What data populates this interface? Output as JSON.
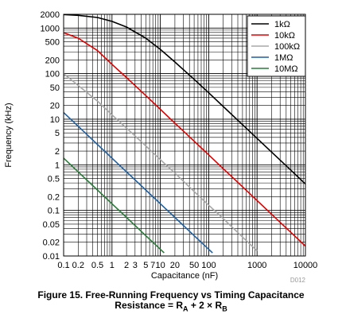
{
  "chart_data": {
    "type": "line",
    "x_scale": "log",
    "y_scale": "log",
    "xlim": [
      0.1,
      10000
    ],
    "ylim": [
      0.01,
      2000
    ],
    "xlabel": "Capacitance (nF)",
    "ylabel": "Frequency (kHz)",
    "x_ticks": [
      "0.1",
      "0.2",
      "0.5",
      "1",
      "2",
      "3",
      "5",
      "7",
      "10",
      "20",
      "50",
      "100",
      "1000",
      "10000"
    ],
    "x_tick_values": [
      0.1,
      0.2,
      0.5,
      1,
      2,
      3,
      5,
      7,
      10,
      20,
      50,
      100,
      1000,
      10000
    ],
    "y_ticks": [
      "2000",
      "1000",
      "500",
      "200",
      "100",
      "50",
      "20",
      "10",
      "5",
      "2",
      "1",
      "0.5",
      "0.2",
      "0.1",
      "0.05",
      "0.02",
      "0.01"
    ],
    "y_tick_values": [
      2000,
      1000,
      500,
      200,
      100,
      50,
      20,
      10,
      5,
      2,
      1,
      0.5,
      0.2,
      0.1,
      0.05,
      0.02,
      0.01
    ],
    "grid": true,
    "legend_position": "top-right",
    "series": [
      {
        "name": "1kΩ",
        "color": "#000000",
        "x": [
          0.1,
          0.2,
          0.5,
          1,
          2,
          5,
          10,
          20,
          50,
          100,
          200,
          500,
          1000,
          2000,
          5000,
          10000
        ],
        "y": [
          1980,
          1900,
          1700,
          1400,
          1050,
          600,
          340,
          180,
          75,
          38,
          19,
          7.6,
          3.8,
          1.9,
          0.76,
          0.38
        ]
      },
      {
        "name": "10kΩ",
        "color": "#e00000",
        "x": [
          0.1,
          0.2,
          0.5,
          1,
          2,
          5,
          10,
          20,
          50,
          100,
          200,
          500,
          1000,
          2000,
          5000,
          10000
        ],
        "y": [
          790,
          600,
          320,
          160,
          82,
          33,
          16.5,
          8.2,
          3.3,
          1.65,
          0.82,
          0.33,
          0.165,
          0.082,
          0.033,
          0.0165
        ]
      },
      {
        "name": "100kΩ",
        "color": "#a8a8a8",
        "x": [
          0.1,
          0.2,
          0.5,
          1,
          2,
          5,
          10,
          20,
          50,
          100,
          200,
          500,
          1000
        ],
        "y": [
          100,
          55,
          25,
          12.5,
          6.4,
          2.6,
          1.3,
          0.66,
          0.26,
          0.13,
          0.066,
          0.026,
          0.013
        ]
      },
      {
        "name": "1MΩ",
        "color": "#1f5f9f",
        "x": [
          0.1,
          0.2,
          0.5,
          1,
          2,
          5,
          10,
          20,
          50,
          100,
          120
        ],
        "y": [
          14,
          7,
          2.8,
          1.4,
          0.7,
          0.28,
          0.14,
          0.07,
          0.028,
          0.014,
          0.0117
        ]
      },
      {
        "name": "10MΩ",
        "color": "#2a7a3a",
        "x": [
          0.1,
          0.2,
          0.5,
          1,
          2,
          5,
          10,
          12
        ],
        "y": [
          1.4,
          0.7,
          0.28,
          0.14,
          0.07,
          0.028,
          0.014,
          0.0117
        ]
      }
    ]
  },
  "doc_id": "D012",
  "caption": {
    "line1": "Figure 15.  Free-Running Frequency vs Timing Capacitance",
    "line2_prefix": "Resistance = R",
    "line2_sub1": "A",
    "line2_mid": " + 2 × R",
    "line2_sub2": "B"
  }
}
